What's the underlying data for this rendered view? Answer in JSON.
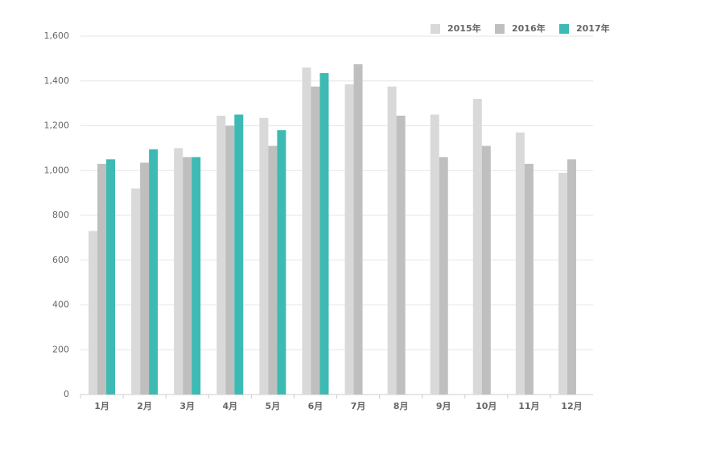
{
  "chart_data": {
    "type": "bar",
    "categories": [
      "1月",
      "2月",
      "3月",
      "4月",
      "5月",
      "6月",
      "7月",
      "8月",
      "9月",
      "10月",
      "11月",
      "12月"
    ],
    "series": [
      {
        "name": "2015年",
        "color": "#d9d9d9",
        "values": [
          730,
          920,
          1100,
          1245,
          1235,
          1460,
          1385,
          1375,
          1250,
          1320,
          1170,
          990
        ]
      },
      {
        "name": "2016年",
        "color": "#bfbfbf",
        "values": [
          1030,
          1035,
          1060,
          1200,
          1110,
          1375,
          1475,
          1245,
          1060,
          1110,
          1030,
          1050
        ]
      },
      {
        "name": "2017年",
        "color": "#3cbab3",
        "values": [
          1050,
          1095,
          1060,
          1250,
          1180,
          1435,
          null,
          null,
          null,
          null,
          null,
          null
        ]
      }
    ],
    "ylim": [
      0,
      1600
    ],
    "yticks": [
      0,
      200,
      400,
      600,
      800,
      {
        "value": 1000,
        "label": "1,000"
      },
      {
        "value": 1200,
        "label": "1,200"
      },
      {
        "value": 1400,
        "label": "1,400"
      },
      {
        "value": 1600,
        "label": "1,600"
      }
    ],
    "grid": true,
    "legend": "top-right"
  }
}
